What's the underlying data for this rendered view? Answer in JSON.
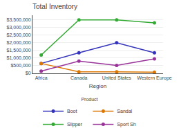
{
  "chart_data": {
    "type": "line",
    "title": "Total Inventory",
    "xlabel": "Region",
    "categories": [
      "Africa",
      "Canada",
      "United States",
      "Western Europe"
    ],
    "series": [
      {
        "name": "Boot",
        "color": "#3333bb",
        "values": [
          650000,
          1350000,
          2000000,
          1350000
        ]
      },
      {
        "name": "Sandal",
        "color": "#dd7700",
        "values": [
          650000,
          100000,
          100000,
          75000
        ]
      },
      {
        "name": "Slipper",
        "color": "#33aa33",
        "values": [
          1200000,
          3500000,
          3500000,
          3300000
        ]
      },
      {
        "name": "Sport Sh",
        "color": "#993399",
        "values": [
          150000,
          800000,
          525000,
          950000
        ]
      }
    ],
    "ylim": [
      0,
      3800000
    ],
    "yticks": [
      {
        "value": 0,
        "label": "$0"
      },
      {
        "value": 500000,
        "label": "$500,000"
      },
      {
        "value": 1000000,
        "label": "$1,000,000"
      },
      {
        "value": 1500000,
        "label": "$1,500,000"
      },
      {
        "value": 2000000,
        "label": "$2,000,000"
      },
      {
        "value": 2500000,
        "label": "$2,500,000"
      },
      {
        "value": 3000000,
        "label": "$3,000,000"
      },
      {
        "value": 3500000,
        "label": "$3,500,000"
      }
    ],
    "grid": true,
    "legend": "bottom",
    "legend_title": "Product",
    "marker": "circle"
  }
}
